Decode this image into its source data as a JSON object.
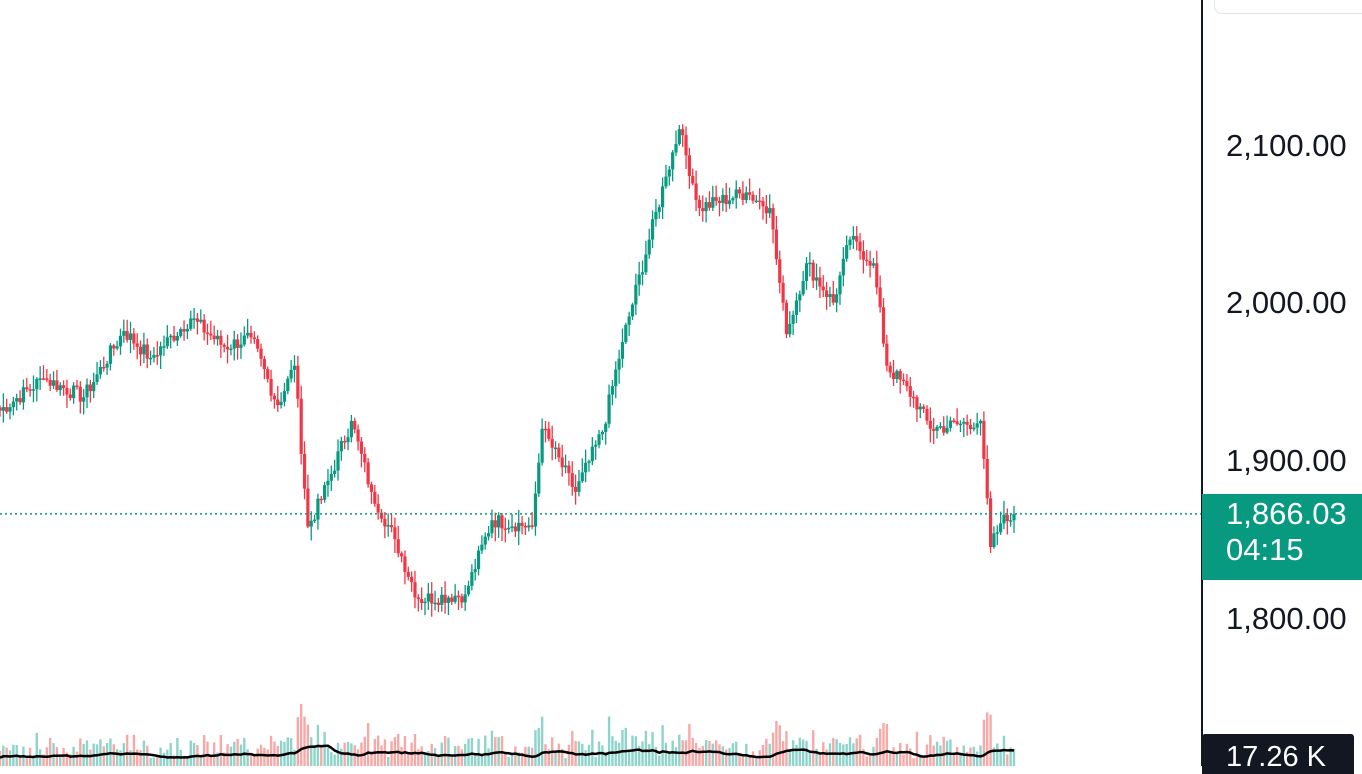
{
  "chart_data": {
    "type": "candlestick",
    "price_axis": {
      "ticks": [
        "2,100.00",
        "2,000.00",
        "1,900.00",
        "1,800.00"
      ],
      "tick_values": [
        2100,
        2000,
        1900,
        1800
      ]
    },
    "last_price": {
      "label": "1,866.03",
      "value": 1866.03,
      "countdown": "04:15"
    },
    "volume_label": "17.26 K",
    "colors": {
      "up": "#089981",
      "down": "#f23645",
      "volume_up": "#8fd4cb",
      "volume_down": "#f7a9a7",
      "price_line": "#089981",
      "volume_ma": "#000000",
      "text": "#131722"
    },
    "segments": [
      {
        "start": 1930,
        "end": 1952,
        "count": 14
      },
      {
        "start": 1952,
        "end": 1940,
        "count": 12
      },
      {
        "start": 1940,
        "end": 1982,
        "count": 12
      },
      {
        "start": 1982,
        "end": 1965,
        "count": 8
      },
      {
        "start": 1965,
        "end": 1990,
        "count": 12
      },
      {
        "start": 1990,
        "end": 1972,
        "count": 10
      },
      {
        "start": 1972,
        "end": 1978,
        "count": 8
      },
      {
        "start": 1978,
        "end": 1935,
        "count": 8
      },
      {
        "start": 1935,
        "end": 1960,
        "count": 5
      },
      {
        "start": 1960,
        "end": 1858,
        "count": 4
      },
      {
        "start": 1858,
        "end": 1875,
        "count": 4
      },
      {
        "start": 1875,
        "end": 1925,
        "count": 9
      },
      {
        "start": 1925,
        "end": 1880,
        "count": 6
      },
      {
        "start": 1880,
        "end": 1850,
        "count": 7
      },
      {
        "start": 1850,
        "end": 1812,
        "count": 7
      },
      {
        "start": 1812,
        "end": 1815,
        "count": 14
      },
      {
        "start": 1815,
        "end": 1862,
        "count": 8
      },
      {
        "start": 1862,
        "end": 1858,
        "count": 12
      },
      {
        "start": 1858,
        "end": 1920,
        "count": 3
      },
      {
        "start": 1920,
        "end": 1880,
        "count": 10
      },
      {
        "start": 1880,
        "end": 1918,
        "count": 8
      },
      {
        "start": 1918,
        "end": 1975,
        "count": 6
      },
      {
        "start": 1975,
        "end": 2040,
        "count": 8
      },
      {
        "start": 2040,
        "end": 2080,
        "count": 5
      },
      {
        "start": 2080,
        "end": 2110,
        "count": 4
      },
      {
        "start": 2110,
        "end": 2060,
        "count": 6
      },
      {
        "start": 2060,
        "end": 2070,
        "count": 14
      },
      {
        "start": 2070,
        "end": 2060,
        "count": 7
      },
      {
        "start": 2060,
        "end": 1980,
        "count": 5
      },
      {
        "start": 1980,
        "end": 2025,
        "count": 6
      },
      {
        "start": 2025,
        "end": 2000,
        "count": 8
      },
      {
        "start": 2000,
        "end": 2040,
        "count": 5
      },
      {
        "start": 2040,
        "end": 2025,
        "count": 7
      },
      {
        "start": 2025,
        "end": 1960,
        "count": 4
      },
      {
        "start": 1960,
        "end": 1940,
        "count": 8
      },
      {
        "start": 1940,
        "end": 1920,
        "count": 5
      },
      {
        "start": 1920,
        "end": 1925,
        "count": 15
      },
      {
        "start": 1925,
        "end": 1845,
        "count": 3
      },
      {
        "start": 1845,
        "end": 1860,
        "count": 3
      },
      {
        "start": 1860,
        "end": 1866,
        "count": 4
      }
    ]
  }
}
